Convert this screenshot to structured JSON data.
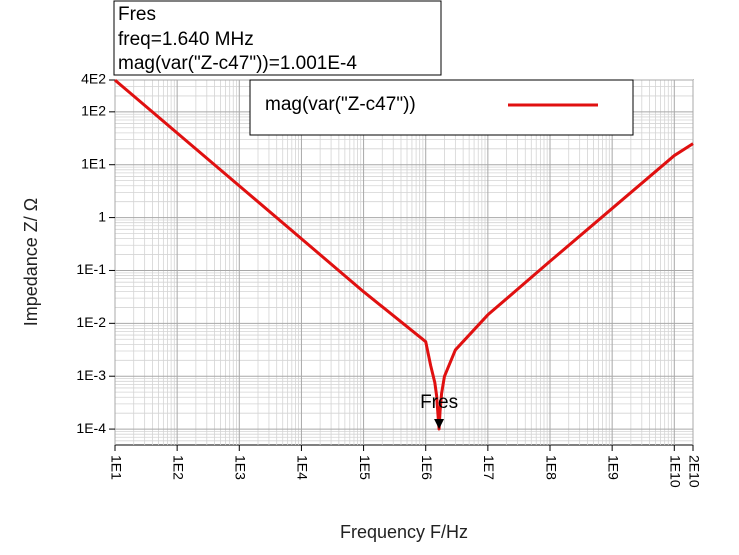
{
  "chart_data": {
    "type": "line",
    "x_label": "Frequency F/Hz",
    "y_label": "Impedance Z/ Ω",
    "log_x": true,
    "log_y": true,
    "grid": true,
    "xlim": [
      10,
      20000000000
    ],
    "ylim": [
      5e-05,
      400
    ],
    "xticks": [
      {
        "value": 10,
        "label": "1E1"
      },
      {
        "value": 100,
        "label": "1E2"
      },
      {
        "value": 1000,
        "label": "1E3"
      },
      {
        "value": 10000,
        "label": "1E4"
      },
      {
        "value": 100000,
        "label": "1E5"
      },
      {
        "value": 1000000,
        "label": "1E6"
      },
      {
        "value": 10000000,
        "label": "1E7"
      },
      {
        "value": 100000000,
        "label": "1E8"
      },
      {
        "value": 1000000000,
        "label": "1E9"
      },
      {
        "value": 10000000000,
        "label": "1E10"
      },
      {
        "value": 20000000000,
        "label": "2E10"
      }
    ],
    "yticks": [
      {
        "value": 400,
        "label": "4E2"
      },
      {
        "value": 100,
        "label": "1E2"
      },
      {
        "value": 10,
        "label": "1E1"
      },
      1,
      {
        "value": 0.1,
        "label": "1E-1"
      },
      {
        "value": 0.01,
        "label": "1E-2"
      },
      {
        "value": 0.001,
        "label": "1E-3"
      },
      {
        "value": 0.0001,
        "label": "1E-4"
      }
    ],
    "x": [
      10,
      100,
      1000,
      10000,
      100000,
      1000000,
      1200000,
      1400000,
      1500000,
      1600000,
      1640000,
      1700000,
      1800000,
      2000000,
      3000000,
      10000000,
      100000000,
      1000000000,
      10000000000,
      20000000000
    ],
    "series": [
      {
        "name": "mag(var(\"Z-c47\"))",
        "color": "#e01010",
        "values": [
          398,
          39.8,
          3.98,
          0.398,
          0.0396,
          0.0045,
          0.0016,
          0.00076,
          0.00042,
          0.000145,
          0.0001001,
          0.000215,
          0.00047,
          0.00099,
          0.00314,
          0.0145,
          0.149,
          1.49,
          14.9,
          25
        ]
      }
    ],
    "legend_position": "top",
    "marker": {
      "title": "Fres",
      "freq_label": "freq=1.640 MHz",
      "value_label": "mag(var(\"Z-c47\"))=1.001E-4",
      "x": 1640000,
      "y": 0.0001001
    }
  }
}
